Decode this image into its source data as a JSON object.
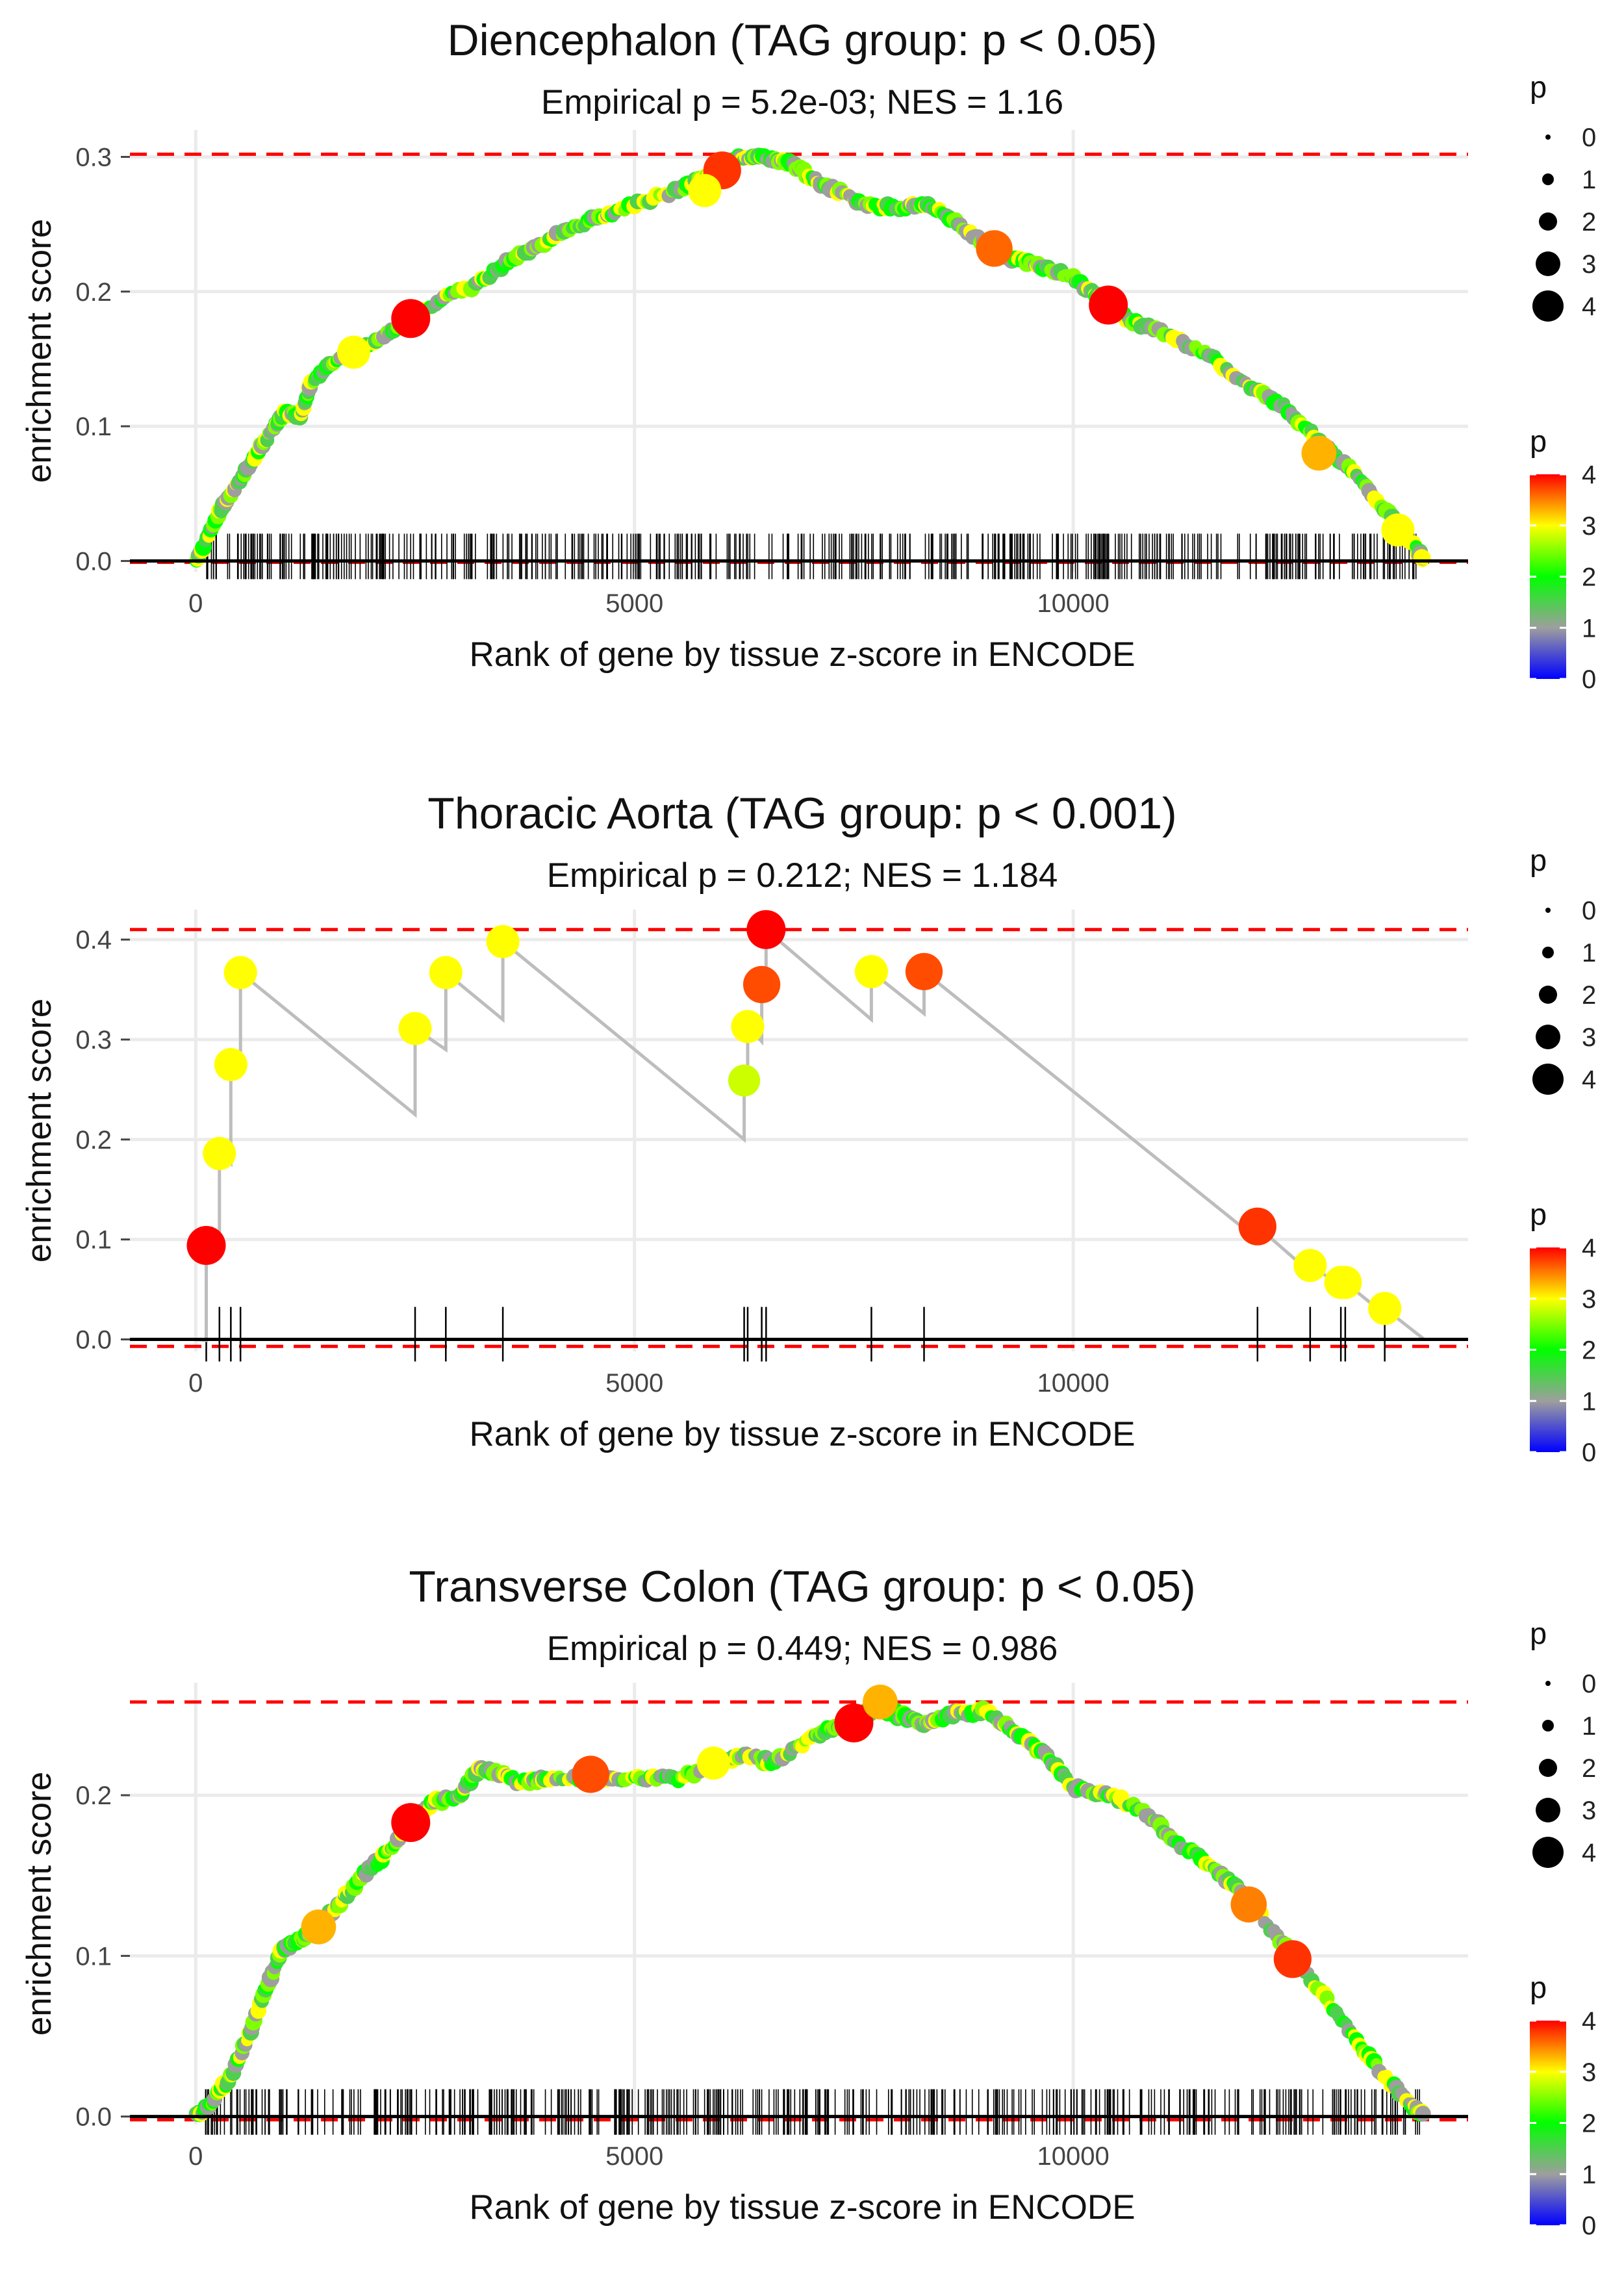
{
  "chart_data": [
    {
      "type": "scatter",
      "title": "Diencephalon (TAG group: p < 0.05)",
      "subtitle": "Empirical p = 5.2e-03; NES = 1.16",
      "xlabel": "Rank of gene by tissue z-score in ENCODE",
      "ylabel": "enrichment score",
      "xlim": [
        -750,
        14500
      ],
      "ylim": [
        -0.008,
        0.32
      ],
      "xticks": [
        0,
        5000,
        10000
      ],
      "yticks": [
        0.0,
        0.1,
        0.2,
        0.3
      ],
      "ytick_labels": [
        "0.0",
        "0.1",
        "0.2",
        "0.3"
      ],
      "max_es": 0.302,
      "min_es": -0.001,
      "curve": {
        "mode": "dense",
        "x": [
          0,
          150,
          300,
          500,
          700,
          900,
          1000,
          1200,
          1300,
          1500,
          1800,
          2200,
          2500,
          2800,
          3200,
          3500,
          3800,
          4200,
          4600,
          5000,
          5500,
          5800,
          6000,
          6200,
          6500,
          6800,
          7000,
          7300,
          7600,
          8000,
          8300,
          8600,
          9000,
          9300,
          9600,
          10000,
          10300,
          10600,
          11000,
          11500,
          12000,
          12400,
          12800,
          13200,
          13600,
          13900,
          14000
        ],
        "y": [
          0.0,
          0.02,
          0.04,
          0.06,
          0.08,
          0.1,
          0.11,
          0.108,
          0.13,
          0.145,
          0.155,
          0.17,
          0.18,
          0.195,
          0.205,
          0.22,
          0.23,
          0.245,
          0.255,
          0.265,
          0.275,
          0.285,
          0.29,
          0.3,
          0.3,
          0.295,
          0.285,
          0.275,
          0.265,
          0.262,
          0.265,
          0.255,
          0.235,
          0.225,
          0.22,
          0.21,
          0.195,
          0.18,
          0.17,
          0.155,
          0.13,
          0.115,
          0.09,
          0.065,
          0.035,
          0.01,
          0.0
        ]
      },
      "highlights": [
        {
          "x": 2450,
          "y": 0.18,
          "p": 4
        },
        {
          "x": 6000,
          "y": 0.29,
          "p": 3.8
        },
        {
          "x": 9100,
          "y": 0.232,
          "p": 3.6
        },
        {
          "x": 10400,
          "y": 0.19,
          "p": 4
        },
        {
          "x": 5800,
          "y": 0.275,
          "p": 3
        },
        {
          "x": 1800,
          "y": 0.155,
          "p": 3
        },
        {
          "x": 12800,
          "y": 0.08,
          "p": 3.3
        },
        {
          "x": 13700,
          "y": 0.023,
          "p": 3
        }
      ]
    },
    {
      "type": "scatter",
      "title": "Thoracic Aorta (TAG group: p < 0.001)",
      "subtitle": "Empirical p = 0.212; NES = 1.184",
      "xlabel": "Rank of gene by tissue z-score in ENCODE",
      "ylabel": "enrichment score",
      "xlim": [
        -750,
        14500
      ],
      "ylim": [
        -0.012,
        0.43
      ],
      "xticks": [
        0,
        5000,
        10000
      ],
      "yticks": [
        0.0,
        0.1,
        0.2,
        0.3,
        0.4
      ],
      "ytick_labels": [
        "0.0",
        "0.1",
        "0.2",
        "0.3",
        "0.4"
      ],
      "max_es": 0.41,
      "min_es": -0.007,
      "curve": {
        "mode": "steps",
        "x": [
          0,
          120,
          120,
          270,
          270,
          400,
          400,
          510,
          510,
          2500,
          2500,
          2850,
          2850,
          3500,
          3500,
          6250,
          6250,
          6290,
          6290,
          6450,
          6450,
          6500,
          6500,
          7700,
          7700,
          8300,
          8300,
          12100,
          12100,
          12700,
          12700,
          13050,
          13050,
          13100,
          13100,
          13550,
          13550,
          14000
        ],
        "y": [
          0.0,
          -0.001,
          0.094,
          0.085,
          0.186,
          0.176,
          0.275,
          0.268,
          0.367,
          0.225,
          0.311,
          0.29,
          0.367,
          0.32,
          0.398,
          0.2,
          0.259,
          0.258,
          0.313,
          0.298,
          0.355,
          0.354,
          0.41,
          0.32,
          0.368,
          0.326,
          0.368,
          0.1,
          0.113,
          0.067,
          0.074,
          0.054,
          0.057,
          0.054,
          0.057,
          0.025,
          0.031,
          0.0
        ]
      },
      "highlights": [
        {
          "x": 120,
          "y": 0.094,
          "p": 4
        },
        {
          "x": 270,
          "y": 0.186,
          "p": 3
        },
        {
          "x": 400,
          "y": 0.275,
          "p": 3
        },
        {
          "x": 510,
          "y": 0.367,
          "p": 3
        },
        {
          "x": 2500,
          "y": 0.311,
          "p": 3
        },
        {
          "x": 2850,
          "y": 0.367,
          "p": 3
        },
        {
          "x": 3500,
          "y": 0.398,
          "p": 3
        },
        {
          "x": 6250,
          "y": 0.259,
          "p": 2.8
        },
        {
          "x": 6290,
          "y": 0.313,
          "p": 3
        },
        {
          "x": 6450,
          "y": 0.355,
          "p": 3.7
        },
        {
          "x": 6500,
          "y": 0.41,
          "p": 4
        },
        {
          "x": 7700,
          "y": 0.368,
          "p": 3
        },
        {
          "x": 8300,
          "y": 0.368,
          "p": 3.7
        },
        {
          "x": 12100,
          "y": 0.113,
          "p": 3.8
        },
        {
          "x": 12700,
          "y": 0.074,
          "p": 3
        },
        {
          "x": 13050,
          "y": 0.057,
          "p": 3
        },
        {
          "x": 13100,
          "y": 0.057,
          "p": 3
        },
        {
          "x": 13550,
          "y": 0.031,
          "p": 3
        }
      ],
      "rug": [
        120,
        270,
        400,
        510,
        2500,
        2850,
        3500,
        6250,
        6290,
        6450,
        6500,
        7700,
        8300,
        12100,
        12700,
        13050,
        13100,
        13550
      ]
    },
    {
      "type": "scatter",
      "title": "Transverse Colon (TAG group: p < 0.05)",
      "subtitle": "Empirical p = 0.449; NES = 0.986",
      "xlabel": "Rank of gene by tissue z-score in ENCODE",
      "ylabel": "enrichment score",
      "xlim": [
        -750,
        14500
      ],
      "ylim": [
        -0.005,
        0.27
      ],
      "xticks": [
        0,
        5000,
        10000
      ],
      "yticks": [
        0.0,
        0.1,
        0.2
      ],
      "ytick_labels": [
        "0.0",
        "0.1",
        "0.2"
      ],
      "max_es": 0.258,
      "min_es": -0.002,
      "curve": {
        "mode": "dense",
        "x": [
          0,
          200,
          400,
          600,
          800,
          1000,
          1200,
          1400,
          1600,
          1900,
          2200,
          2500,
          2700,
          3000,
          3200,
          3400,
          3700,
          4000,
          4500,
          5000,
          5500,
          6000,
          6300,
          6600,
          7000,
          7400,
          7800,
          8000,
          8300,
          8600,
          9000,
          9300,
          9700,
          10000,
          10400,
          10800,
          11200,
          11600,
          12000,
          12500,
          13000,
          13400,
          13800,
          14000
        ],
        "y": [
          0.0,
          0.01,
          0.025,
          0.05,
          0.08,
          0.105,
          0.11,
          0.12,
          0.13,
          0.15,
          0.165,
          0.185,
          0.195,
          0.2,
          0.215,
          0.215,
          0.208,
          0.21,
          0.21,
          0.21,
          0.21,
          0.222,
          0.225,
          0.22,
          0.235,
          0.245,
          0.255,
          0.25,
          0.245,
          0.25,
          0.253,
          0.24,
          0.225,
          0.205,
          0.2,
          0.19,
          0.17,
          0.155,
          0.135,
          0.1,
          0.065,
          0.035,
          0.01,
          0.0
        ]
      },
      "highlights": [
        {
          "x": 2450,
          "y": 0.183,
          "p": 4
        },
        {
          "x": 4500,
          "y": 0.213,
          "p": 3.7
        },
        {
          "x": 7500,
          "y": 0.245,
          "p": 4
        },
        {
          "x": 7800,
          "y": 0.258,
          "p": 3.3
        },
        {
          "x": 12500,
          "y": 0.098,
          "p": 3.8
        },
        {
          "x": 1400,
          "y": 0.118,
          "p": 3.3
        },
        {
          "x": 12000,
          "y": 0.132,
          "p": 3.5
        },
        {
          "x": 5900,
          "y": 0.22,
          "p": 3
        }
      ]
    }
  ],
  "legend": {
    "size_title": "p",
    "size_labels": [
      "0",
      "1",
      "2",
      "3",
      "4"
    ],
    "color_title": "p",
    "color_labels": [
      "4",
      "3",
      "2",
      "1",
      "0"
    ]
  },
  "colors": {
    "line": "#bdbdbd",
    "max_line": "#ff0000",
    "zero_line": "#000000",
    "grid": "#ebebeb",
    "gradient": [
      "#0000ff",
      "#9e9e9e",
      "#00ff00",
      "#ffff00",
      "#ff0000"
    ]
  }
}
